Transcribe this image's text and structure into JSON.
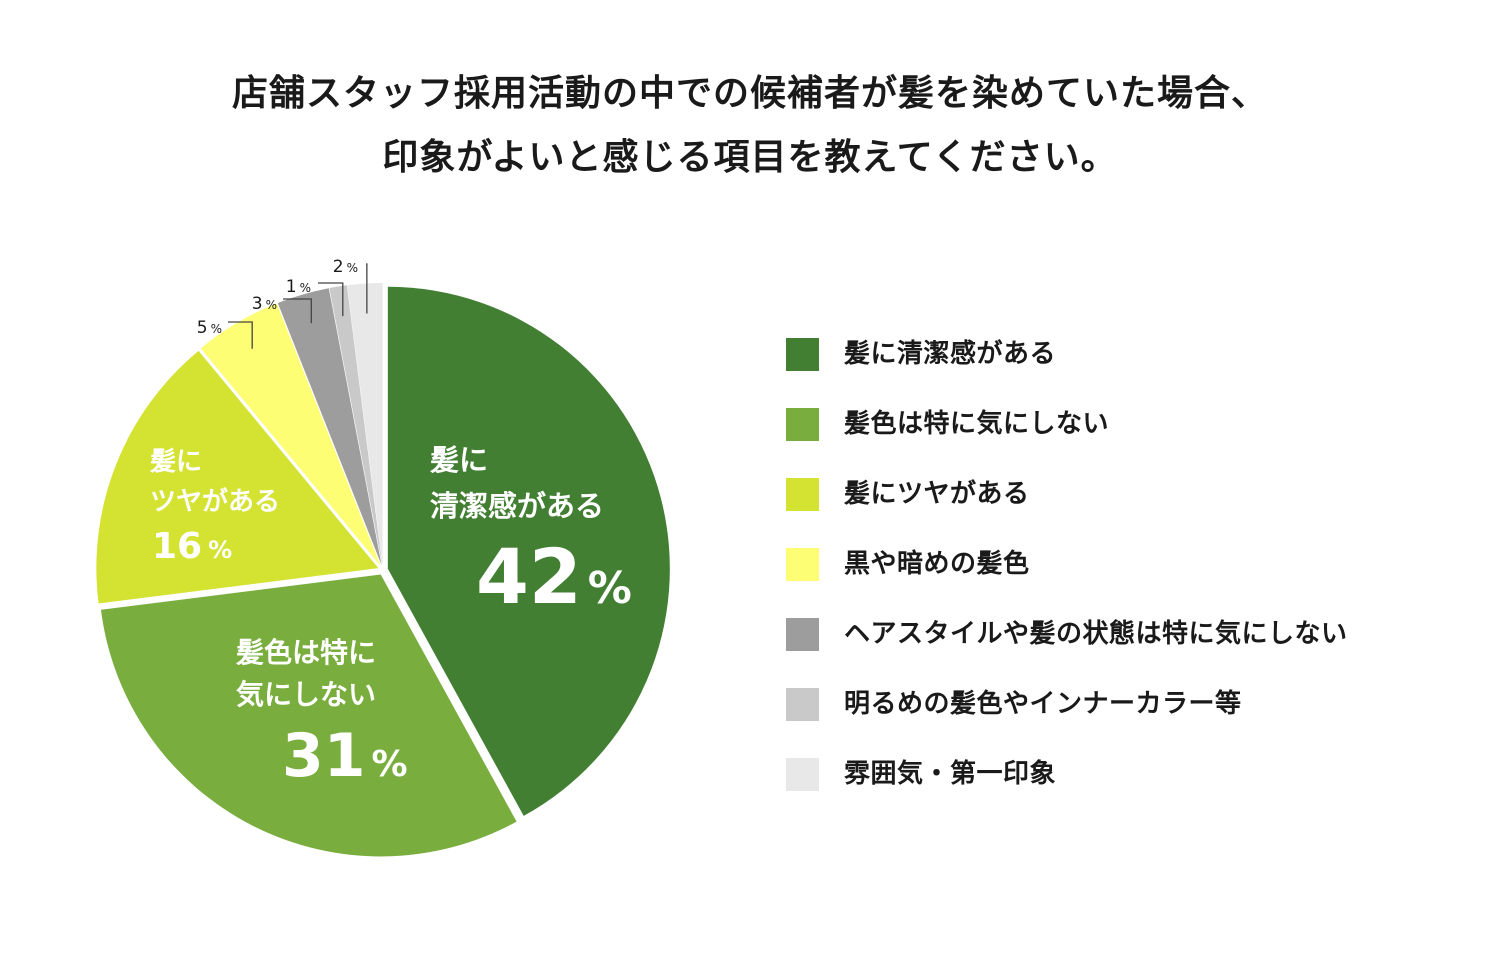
{
  "title": {
    "line1": "店舗スタッフ採用活動の中での候補者が髪を染めていた場合、",
    "line2": "印象がよいと感じる項目を教えてください。"
  },
  "chart_data": {
    "type": "pie",
    "unit": "%",
    "start_angle_deg": 0,
    "direction": "clockwise",
    "slices": [
      {
        "label": "髪に清潔感がある",
        "value": 42,
        "color": "#427f33",
        "inside_label": [
          "髪に",
          "清潔感がある"
        ],
        "value_label": "42"
      },
      {
        "label": "髪色は特に気にしない",
        "value": 31,
        "color": "#79ae3f",
        "inside_label": [
          "髪色は特に",
          "気にしない"
        ],
        "value_label": "31"
      },
      {
        "label": "髪にツヤがある",
        "value": 16,
        "color": "#d4e232",
        "inside_label": [
          "髪に",
          "ツヤがある"
        ],
        "value_label": "16"
      },
      {
        "label": "黒や暗めの髪色",
        "value": 5,
        "color": "#fdfe73",
        "value_label": "5"
      },
      {
        "label": "ヘアスタイルや髪の状態は特に気にしない",
        "value": 3,
        "color": "#9d9d9d",
        "value_label": "3"
      },
      {
        "label": "明るめの髪色やインナーカラー等",
        "value": 1,
        "color": "#c9c9c9",
        "value_label": "1"
      },
      {
        "label": "雰囲気・第一印象",
        "value": 2,
        "color": "#e8e8e8",
        "value_label": "2"
      }
    ]
  }
}
